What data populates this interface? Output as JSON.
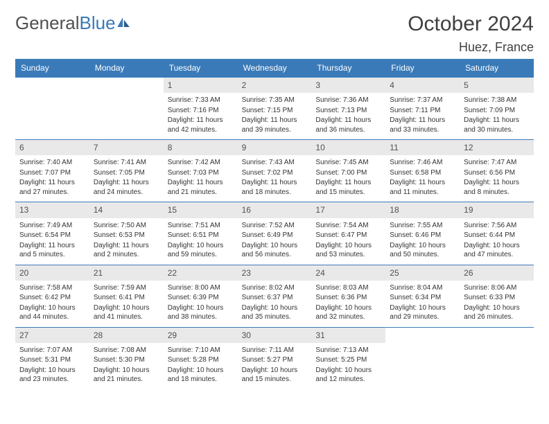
{
  "logo": {
    "part1": "General",
    "part2": "Blue"
  },
  "title": "October 2024",
  "location": "Huez, France",
  "colors": {
    "accent": "#3a7ab8",
    "header_text": "#ffffff",
    "daynum_bg": "#e9e9e9",
    "text": "#333333",
    "background": "#ffffff"
  },
  "day_labels": [
    "Sunday",
    "Monday",
    "Tuesday",
    "Wednesday",
    "Thursday",
    "Friday",
    "Saturday"
  ],
  "weeks": [
    [
      null,
      null,
      {
        "n": "1",
        "sr": "Sunrise: 7:33 AM",
        "ss": "Sunset: 7:16 PM",
        "dl": "Daylight: 11 hours and 42 minutes."
      },
      {
        "n": "2",
        "sr": "Sunrise: 7:35 AM",
        "ss": "Sunset: 7:15 PM",
        "dl": "Daylight: 11 hours and 39 minutes."
      },
      {
        "n": "3",
        "sr": "Sunrise: 7:36 AM",
        "ss": "Sunset: 7:13 PM",
        "dl": "Daylight: 11 hours and 36 minutes."
      },
      {
        "n": "4",
        "sr": "Sunrise: 7:37 AM",
        "ss": "Sunset: 7:11 PM",
        "dl": "Daylight: 11 hours and 33 minutes."
      },
      {
        "n": "5",
        "sr": "Sunrise: 7:38 AM",
        "ss": "Sunset: 7:09 PM",
        "dl": "Daylight: 11 hours and 30 minutes."
      }
    ],
    [
      {
        "n": "6",
        "sr": "Sunrise: 7:40 AM",
        "ss": "Sunset: 7:07 PM",
        "dl": "Daylight: 11 hours and 27 minutes."
      },
      {
        "n": "7",
        "sr": "Sunrise: 7:41 AM",
        "ss": "Sunset: 7:05 PM",
        "dl": "Daylight: 11 hours and 24 minutes."
      },
      {
        "n": "8",
        "sr": "Sunrise: 7:42 AM",
        "ss": "Sunset: 7:03 PM",
        "dl": "Daylight: 11 hours and 21 minutes."
      },
      {
        "n": "9",
        "sr": "Sunrise: 7:43 AM",
        "ss": "Sunset: 7:02 PM",
        "dl": "Daylight: 11 hours and 18 minutes."
      },
      {
        "n": "10",
        "sr": "Sunrise: 7:45 AM",
        "ss": "Sunset: 7:00 PM",
        "dl": "Daylight: 11 hours and 15 minutes."
      },
      {
        "n": "11",
        "sr": "Sunrise: 7:46 AM",
        "ss": "Sunset: 6:58 PM",
        "dl": "Daylight: 11 hours and 11 minutes."
      },
      {
        "n": "12",
        "sr": "Sunrise: 7:47 AM",
        "ss": "Sunset: 6:56 PM",
        "dl": "Daylight: 11 hours and 8 minutes."
      }
    ],
    [
      {
        "n": "13",
        "sr": "Sunrise: 7:49 AM",
        "ss": "Sunset: 6:54 PM",
        "dl": "Daylight: 11 hours and 5 minutes."
      },
      {
        "n": "14",
        "sr": "Sunrise: 7:50 AM",
        "ss": "Sunset: 6:53 PM",
        "dl": "Daylight: 11 hours and 2 minutes."
      },
      {
        "n": "15",
        "sr": "Sunrise: 7:51 AM",
        "ss": "Sunset: 6:51 PM",
        "dl": "Daylight: 10 hours and 59 minutes."
      },
      {
        "n": "16",
        "sr": "Sunrise: 7:52 AM",
        "ss": "Sunset: 6:49 PM",
        "dl": "Daylight: 10 hours and 56 minutes."
      },
      {
        "n": "17",
        "sr": "Sunrise: 7:54 AM",
        "ss": "Sunset: 6:47 PM",
        "dl": "Daylight: 10 hours and 53 minutes."
      },
      {
        "n": "18",
        "sr": "Sunrise: 7:55 AM",
        "ss": "Sunset: 6:46 PM",
        "dl": "Daylight: 10 hours and 50 minutes."
      },
      {
        "n": "19",
        "sr": "Sunrise: 7:56 AM",
        "ss": "Sunset: 6:44 PM",
        "dl": "Daylight: 10 hours and 47 minutes."
      }
    ],
    [
      {
        "n": "20",
        "sr": "Sunrise: 7:58 AM",
        "ss": "Sunset: 6:42 PM",
        "dl": "Daylight: 10 hours and 44 minutes."
      },
      {
        "n": "21",
        "sr": "Sunrise: 7:59 AM",
        "ss": "Sunset: 6:41 PM",
        "dl": "Daylight: 10 hours and 41 minutes."
      },
      {
        "n": "22",
        "sr": "Sunrise: 8:00 AM",
        "ss": "Sunset: 6:39 PM",
        "dl": "Daylight: 10 hours and 38 minutes."
      },
      {
        "n": "23",
        "sr": "Sunrise: 8:02 AM",
        "ss": "Sunset: 6:37 PM",
        "dl": "Daylight: 10 hours and 35 minutes."
      },
      {
        "n": "24",
        "sr": "Sunrise: 8:03 AM",
        "ss": "Sunset: 6:36 PM",
        "dl": "Daylight: 10 hours and 32 minutes."
      },
      {
        "n": "25",
        "sr": "Sunrise: 8:04 AM",
        "ss": "Sunset: 6:34 PM",
        "dl": "Daylight: 10 hours and 29 minutes."
      },
      {
        "n": "26",
        "sr": "Sunrise: 8:06 AM",
        "ss": "Sunset: 6:33 PM",
        "dl": "Daylight: 10 hours and 26 minutes."
      }
    ],
    [
      {
        "n": "27",
        "sr": "Sunrise: 7:07 AM",
        "ss": "Sunset: 5:31 PM",
        "dl": "Daylight: 10 hours and 23 minutes."
      },
      {
        "n": "28",
        "sr": "Sunrise: 7:08 AM",
        "ss": "Sunset: 5:30 PM",
        "dl": "Daylight: 10 hours and 21 minutes."
      },
      {
        "n": "29",
        "sr": "Sunrise: 7:10 AM",
        "ss": "Sunset: 5:28 PM",
        "dl": "Daylight: 10 hours and 18 minutes."
      },
      {
        "n": "30",
        "sr": "Sunrise: 7:11 AM",
        "ss": "Sunset: 5:27 PM",
        "dl": "Daylight: 10 hours and 15 minutes."
      },
      {
        "n": "31",
        "sr": "Sunrise: 7:13 AM",
        "ss": "Sunset: 5:25 PM",
        "dl": "Daylight: 10 hours and 12 minutes."
      },
      null,
      null
    ]
  ]
}
